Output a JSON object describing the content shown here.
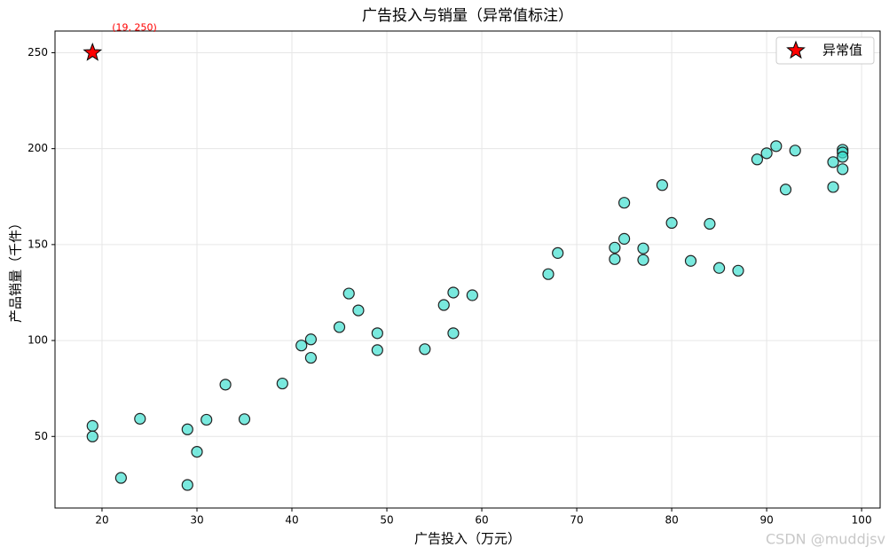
{
  "chart_data": {
    "type": "scatter",
    "title": "广告投入与销量（异常值标注）",
    "xlabel": "广告投入（万元）",
    "ylabel": "产品销量（千件）",
    "xlim": [
      15.05,
      101.95
    ],
    "ylim": [
      12.7,
      261.3
    ],
    "xticks": [
      20,
      30,
      40,
      50,
      60,
      70,
      80,
      90,
      100
    ],
    "yticks": [
      50,
      100,
      150,
      200,
      250
    ],
    "grid": true,
    "legend": "upper right",
    "series": [
      {
        "color": "#40E0D0",
        "x": [
          19,
          19,
          22,
          24,
          29,
          29,
          30,
          31,
          33,
          35,
          39,
          41,
          42,
          42,
          45,
          46,
          47,
          49,
          49,
          54,
          56,
          57,
          57,
          59,
          67,
          68,
          74,
          74,
          75,
          75,
          77,
          77,
          79,
          80,
          82,
          84,
          85,
          87,
          89,
          90,
          91,
          92,
          93,
          97,
          97,
          98,
          98,
          98,
          98
        ],
        "values": [
          55.5,
          50,
          28.4,
          59.2,
          53.7,
          24.7,
          42,
          58.7,
          77,
          59,
          77.6,
          97.4,
          100.6,
          91,
          107,
          124.5,
          115.7,
          103.8,
          95,
          95.5,
          118.5,
          125,
          103.8,
          123.6,
          134.6,
          145.6,
          148.4,
          142.4,
          171.8,
          153,
          148,
          142,
          181,
          161.3,
          141.5,
          160.8,
          137.8,
          136.4,
          194.4,
          197.6,
          201.3,
          178.7,
          199,
          193,
          180,
          199.4,
          198,
          195.7,
          189.3
        ]
      },
      {
        "name": "异常值",
        "color": "#ff0000",
        "marker": "star",
        "x": [
          19
        ],
        "values": [
          250
        ]
      }
    ],
    "annotations": [
      {
        "text": "(19, 250)",
        "color": "#ff0000"
      }
    ],
    "watermark": "CSDN @muddjsv"
  }
}
